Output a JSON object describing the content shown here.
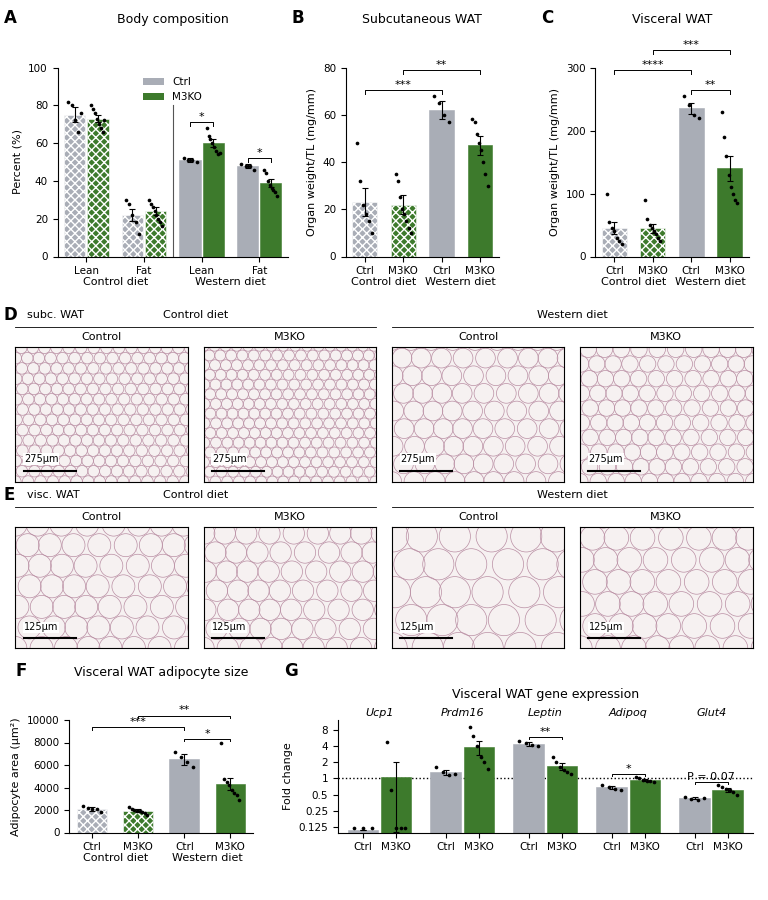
{
  "chart_data": [
    {
      "panel": "A",
      "type": "bar",
      "title": "Body composition",
      "y_label": "Percent (%)",
      "ylim": [
        0,
        100
      ],
      "yticks": [
        0,
        20,
        40,
        60,
        80,
        100
      ],
      "categories": [
        "Lean",
        "Fat",
        "Lean",
        "Fat"
      ],
      "groups": [
        {
          "name": "Control diet",
          "size": 2
        },
        {
          "name": "Western diet",
          "size": 2
        }
      ],
      "series": [
        {
          "name": "Ctrl",
          "color": "#a9adb6",
          "values": [
            75,
            22,
            51,
            48
          ],
          "errors": [
            4,
            3,
            1,
            1
          ],
          "points": [
            [
              82,
              80,
              72,
              66,
              76
            ],
            [
              30,
              28,
              22,
              18,
              12
            ],
            [
              52,
              51,
              51,
              50
            ],
            [
              49,
              48,
              48,
              46
            ]
          ]
        },
        {
          "name": "M3KO",
          "color": "#3d7a2c",
          "values": [
            73,
            24,
            60,
            39
          ],
          "errors": [
            2,
            2,
            2,
            2
          ],
          "points": [
            [
              80,
              78,
              76,
              73,
              70,
              68,
              66,
              72
            ],
            [
              30,
              28,
              26,
              24,
              22,
              20,
              18,
              16
            ],
            [
              68,
              64,
              62,
              60,
              58,
              56,
              54,
              55
            ],
            [
              46,
              44,
              40,
              38,
              36,
              35,
              34,
              32
            ]
          ]
        }
      ],
      "legend": "upper center",
      "annotations": [
        {
          "category": 2,
          "text": "*"
        },
        {
          "category": 3,
          "text": "*"
        }
      ]
    },
    {
      "panel": "B",
      "type": "bar",
      "title": "Subcutaneous WAT",
      "y_label": "Organ weight/TL (mg/mm)",
      "ylim": [
        0,
        80
      ],
      "yticks": [
        0,
        20,
        40,
        60,
        80
      ],
      "categories": [
        "Ctrl",
        "M3KO",
        "Ctrl",
        "M3KO"
      ],
      "groups": [
        {
          "name": "Control diet",
          "size": 2
        },
        {
          "name": "Western diet",
          "size": 2
        }
      ],
      "colors": [
        "#a9adb6",
        "#3d7a2c",
        "#a9adb6",
        "#3d7a2c"
      ],
      "values": [
        23,
        22,
        62,
        47
      ],
      "errors": [
        6,
        4,
        4,
        4
      ],
      "points": [
        [
          48,
          32,
          22,
          18,
          15,
          10
        ],
        [
          35,
          32,
          25,
          20,
          18,
          15,
          12,
          10
        ],
        [
          68,
          65,
          60,
          57
        ],
        [
          58,
          57,
          52,
          48,
          45,
          40,
          35,
          30
        ]
      ],
      "annotations": [
        {
          "from": 0,
          "to": 2,
          "text": "***"
        },
        {
          "from": 1,
          "to": 3,
          "text": "**"
        }
      ]
    },
    {
      "panel": "C",
      "type": "bar",
      "title": "Visceral WAT",
      "y_label": "Organ weight/TL (mg/mm)",
      "ylim": [
        0,
        300
      ],
      "yticks": [
        0,
        100,
        200,
        300
      ],
      "categories": [
        "Ctrl",
        "M3KO",
        "Ctrl",
        "M3KO"
      ],
      "groups": [
        {
          "name": "Control diet",
          "size": 2
        },
        {
          "name": "Western diet",
          "size": 2
        }
      ],
      "colors": [
        "#a9adb6",
        "#3d7a2c",
        "#a9adb6",
        "#3d7a2c"
      ],
      "values": [
        45,
        45,
        235,
        140
      ],
      "errors": [
        10,
        7,
        9,
        20
      ],
      "points": [
        [
          100,
          55,
          45,
          40,
          30,
          25,
          20
        ],
        [
          90,
          60,
          50,
          45,
          40,
          35,
          30,
          25
        ],
        [
          255,
          240,
          225,
          220
        ],
        [
          230,
          190,
          160,
          130,
          110,
          100,
          90,
          85
        ]
      ],
      "annotations": [
        {
          "from": 2,
          "to": 3,
          "text": "**"
        },
        {
          "from": 0,
          "to": 2,
          "text": "****"
        },
        {
          "from": 1,
          "to": 3,
          "text": "***"
        }
      ]
    },
    {
      "panel": "F",
      "type": "bar",
      "title": "Visceral WAT adipocyte size",
      "y_label": "Adipocyte area (µm²)",
      "ylim": [
        0,
        10000
      ],
      "yticks": [
        0,
        2000,
        4000,
        6000,
        8000,
        10000
      ],
      "categories": [
        "Ctrl",
        "M3KO",
        "Ctrl",
        "M3KO"
      ],
      "groups": [
        {
          "name": "Control diet",
          "size": 2
        },
        {
          "name": "Western diet",
          "size": 2
        }
      ],
      "colors": [
        "#a9adb6",
        "#3d7a2c",
        "#a9adb6",
        "#3d7a2c"
      ],
      "values": [
        2100,
        1950,
        6500,
        4300
      ],
      "errors": [
        150,
        100,
        500,
        550
      ],
      "points": [
        [
          2400,
          2200,
          2100,
          2050,
          1800
        ],
        [
          2300,
          2100,
          2000,
          1950,
          1900,
          1850,
          1700,
          1600
        ],
        [
          7200,
          6700,
          6300,
          5800
        ],
        [
          8000,
          4800,
          4500,
          4200,
          3800,
          3500,
          3300,
          2900
        ]
      ],
      "annotations": [
        {
          "from": 2,
          "to": 3,
          "text": "*"
        },
        {
          "from": 0,
          "to": 2,
          "text": "***"
        },
        {
          "from": 1,
          "to": 3,
          "text": "**"
        }
      ]
    },
    {
      "panel": "G",
      "type": "bar",
      "title": "Visceral WAT gene expression",
      "y_label": "Fold change",
      "log": "y",
      "ylim": [
        0.1,
        12
      ],
      "yticks": [
        0.125,
        0.25,
        0.5,
        1,
        2,
        4,
        8
      ],
      "reference_line": 1,
      "categories": [
        "Ucp1",
        "Prdm16",
        "Leptin",
        "Adipoq",
        "Glut4"
      ],
      "series": [
        {
          "name": "Ctrl",
          "color": "#a9adb6",
          "values": [
            0.11,
            1.3,
            4.4,
            0.68,
            0.43
          ],
          "errors": [
            0,
            0.15,
            0.35,
            0.05,
            0.02
          ],
          "points": [
            [
              0.12,
              0.12,
              0.12
            ],
            [
              1.6,
              1.3,
              1.15,
              1.2
            ],
            [
              5,
              4.5,
              4.2,
              4
            ],
            [
              0.75,
              0.7,
              0.65,
              0.6
            ],
            [
              0.45,
              0.42,
              0.4,
              0.43
            ]
          ]
        },
        {
          "name": "M3KO",
          "color": "#3d7a2c",
          "values": [
            1.05,
            3.8,
            1.7,
            0.93,
            0.62
          ],
          "errors": [
            0.95,
            1.1,
            0.25,
            0.04,
            0.05
          ],
          "points": [
            [
              4.7,
              0.6,
              0.12,
              0.12,
              0.12
            ],
            [
              9,
              6,
              4,
              2.5,
              2,
              1.5
            ],
            [
              2.5,
              2,
              1.6,
              1.4,
              1.3,
              1.2
            ],
            [
              1.05,
              1,
              0.95,
              0.9,
              0.9,
              0.85
            ],
            [
              0.75,
              0.7,
              0.65,
              0.6,
              0.55,
              0.5
            ]
          ]
        }
      ],
      "annotations": [
        {
          "category": 2,
          "text": "**"
        },
        {
          "category": 3,
          "text": "*"
        },
        {
          "category": 4,
          "text": "P = 0.07"
        }
      ]
    }
  ],
  "image_panels": [
    {
      "panel": "D",
      "tissue": "subc. WAT",
      "groups": [
        "Control diet",
        "Western diet"
      ],
      "images": [
        "Control",
        "M3KO",
        "Control",
        "M3KO"
      ],
      "scale_bar": "275µm"
    },
    {
      "panel": "E",
      "tissue": "visc. WAT",
      "groups": [
        "Control diet",
        "Western diet"
      ],
      "images": [
        "Control",
        "M3KO",
        "Control",
        "M3KO"
      ],
      "scale_bar": "125µm"
    }
  ]
}
